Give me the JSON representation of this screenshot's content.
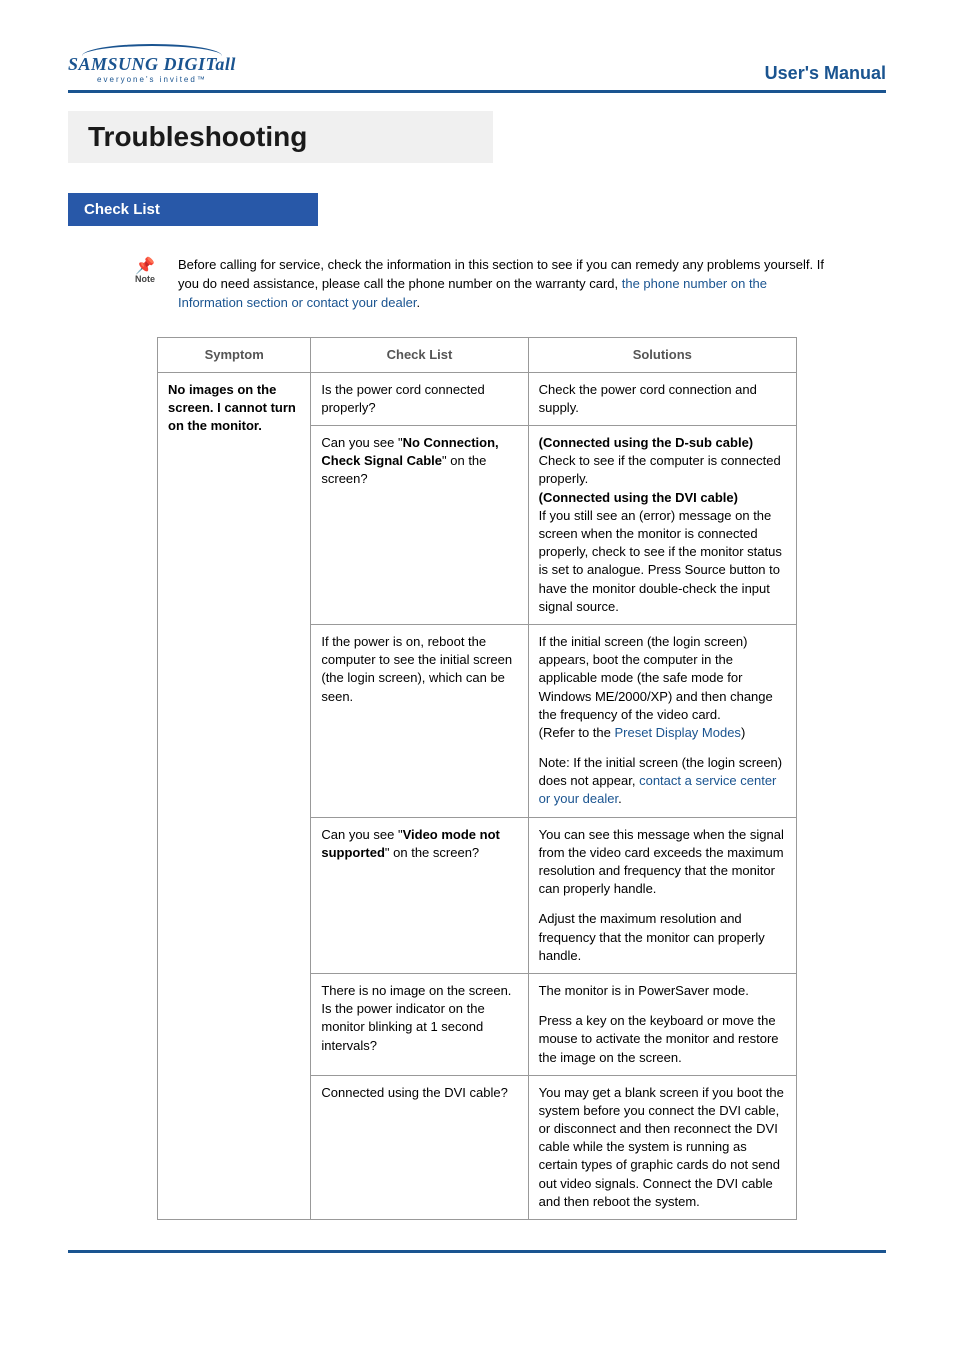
{
  "brand": {
    "logo_main": "SAMSUNG DIGIT",
    "logo_suffix": "all",
    "logo_tm": "™",
    "logo_sub": "everyone's invited™",
    "logo_color": "#1a5490"
  },
  "header": {
    "manual_title": "User's Manual"
  },
  "page_title": "Troubleshooting",
  "section_tab": "Check List",
  "note": {
    "note_label": "Note",
    "text_plain": "Before calling for service, check the information in this section to see if you can remedy any problems yourself. If you do need assistance, please call the phone number on the warranty card, ",
    "text_link": "the phone number on the Information section or contact your dealer",
    "text_after": "."
  },
  "table": {
    "headers": {
      "c1": "Symptom",
      "c2": "Check List",
      "c3": "Solutions"
    },
    "symptom1": "No images on the screen. I cannot turn on the monitor.",
    "rows": [
      {
        "check": "Is the power cord connected properly?",
        "solution_plain": "Check the power cord connection and supply."
      },
      {
        "check_pre": "Can you see \"",
        "check_bold": "No Connection, Check Signal Cable",
        "check_post": "\" on the screen?",
        "sol_b1": "(Connected using the D-sub cable)",
        "sol_t1": "Check to see if the computer is connected properly.",
        "sol_b2": "(Connected using the DVI cable)",
        "sol_t2": "If you still see an (error) message on the screen when the monitor is connected properly, check to see if the monitor status is set to analogue. Press Source button to have the monitor double-check the input signal source."
      },
      {
        "check": "If the power is on, reboot the computer to see the initial screen (the login screen), which can be seen.",
        "sol_p1a": "If the initial screen (the login screen) appears, boot the computer in the applicable mode (the safe mode for Windows ME/2000/XP) and then change the frequency of the video card.",
        "sol_p1b_pre": "(Refer to the ",
        "sol_p1b_link": "Preset Display Modes",
        "sol_p1b_post": ")",
        "sol_p2_pre": "Note: If the initial screen (the login screen) does not appear, ",
        "sol_p2_link": "contact a service center or your dealer",
        "sol_p2_post": "."
      },
      {
        "check_pre": "Can you see \"",
        "check_bold": "Video mode not supported",
        "check_post": "\" on the screen?",
        "sol_p1": "You can see this message when the signal from the video card exceeds the maximum resolution and frequency that the monitor can properly handle.",
        "sol_p2": "Adjust the maximum resolution and frequency that the monitor can properly handle."
      },
      {
        "check": "There is no image on the screen. Is the power indicator on the monitor blinking at 1 second intervals?",
        "sol_p1": "The monitor is in PowerSaver mode.",
        "sol_p2": "Press a key on the keyboard or move the mouse to activate the monitor and restore the image on the screen."
      },
      {
        "check": "Connected using the DVI cable?",
        "solution_plain": "You may get a blank screen if you boot the system before you connect the DVI cable, or disconnect and then reconnect the DVI cable while the system is running as certain types of graphic cards do not send out video signals. Connect the DVI cable and then reboot the system."
      }
    ]
  },
  "styles": {
    "accent": "#1a5490",
    "tab_bg": "#2858a8",
    "band_bg": "#f0f0f0",
    "border": "#999999",
    "body_font_size": 13,
    "title_font_size": 28
  }
}
